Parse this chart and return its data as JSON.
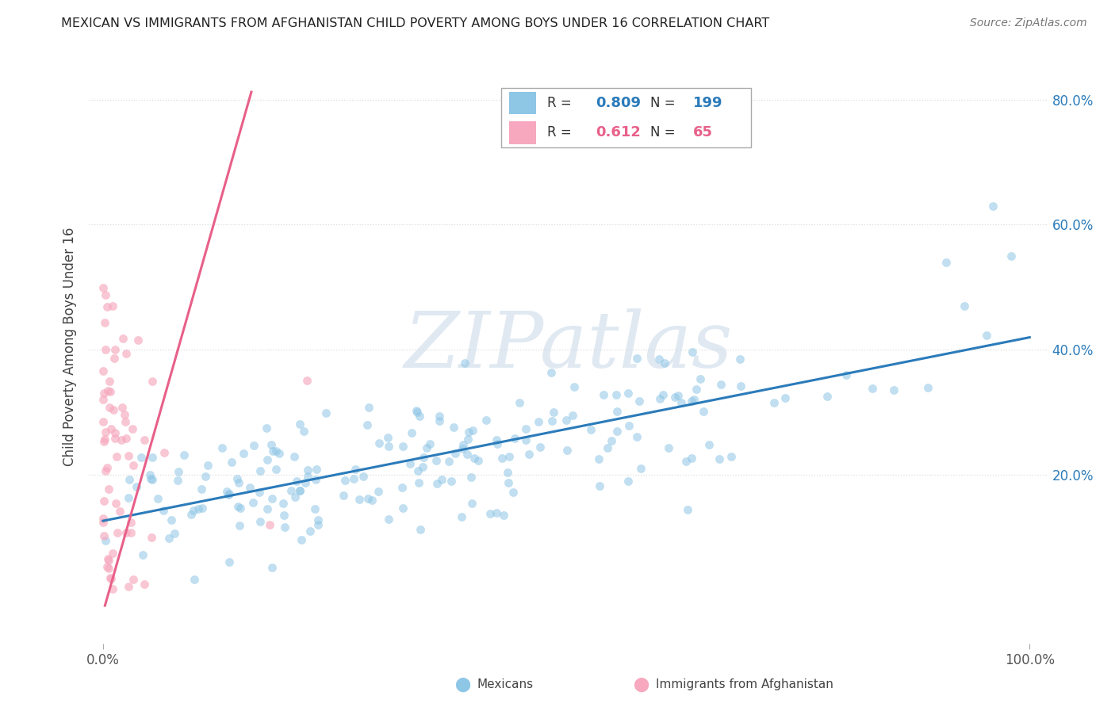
{
  "title": "MEXICAN VS IMMIGRANTS FROM AFGHANISTAN CHILD POVERTY AMONG BOYS UNDER 16 CORRELATION CHART",
  "source": "Source: ZipAtlas.com",
  "ylabel": "Child Poverty Among Boys Under 16",
  "yaxis_labels": [
    "20.0%",
    "40.0%",
    "60.0%",
    "80.0%"
  ],
  "yaxis_values": [
    0.2,
    0.4,
    0.6,
    0.8
  ],
  "mexicans_color": "#8ec6e6",
  "afghanistan_color": "#f7a8be",
  "mexicans_line_color": "#2b7bba",
  "afghanistan_line_color": "#e8608a",
  "mexicans_R": 0.809,
  "mexicans_N": 199,
  "afghanistan_R": 0.612,
  "afghanistan_N": 65,
  "watermark_text": "ZIPatlas",
  "background_color": "#ffffff",
  "grid_color": "#dddddd",
  "title_color": "#222222",
  "axis_label_color": "#444444",
  "tick_color": "#555555",
  "xlim": [
    -0.015,
    1.02
  ],
  "ylim": [
    -0.07,
    0.88
  ]
}
